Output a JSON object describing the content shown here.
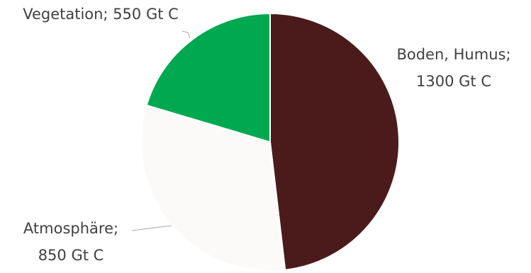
{
  "chart_data": {
    "type": "pie",
    "unit": "Gt C",
    "slices": [
      {
        "name": "Boden, Humus",
        "value": 1300,
        "color": "#4b1b1b",
        "label_lines": [
          "Boden, Humus;",
          "1300 Gt C"
        ]
      },
      {
        "name": "Atmosphäre",
        "value": 850,
        "color": "#fbfaf8",
        "label_lines": [
          "Atmosphäre;",
          "850 Gt C"
        ]
      },
      {
        "name": "Vegetation",
        "value": 550,
        "color": "#00a84f",
        "label_lines": [
          "Vegetation; 550 Gt C"
        ]
      }
    ],
    "start_angle_deg": 0,
    "direction": "clockwise",
    "legend": "none"
  }
}
